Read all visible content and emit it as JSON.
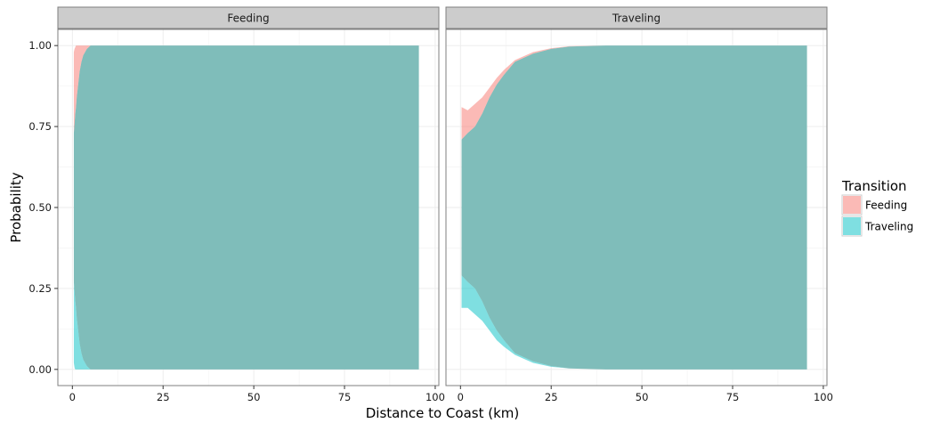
{
  "chart_data": {
    "type": "area",
    "xlabel": "Distance to Coast (km)",
    "ylabel": "Probability",
    "xlim": [
      -4,
      101
    ],
    "ylim": [
      -0.05,
      1.05
    ],
    "x_ticks": [
      0,
      25,
      50,
      75,
      100
    ],
    "x_tick_labels": [
      "0",
      "25",
      "50",
      "75",
      "100"
    ],
    "y_ticks": [
      0,
      0.25,
      0.5,
      0.75,
      1
    ],
    "y_tick_labels": [
      "0.00",
      "0.25",
      "0.50",
      "0.75",
      "1.00"
    ],
    "grid": true,
    "legend": {
      "title": "Transition",
      "placement": "right",
      "entries": [
        {
          "label": "Feeding",
          "color": "#F8766D"
        },
        {
          "label": "Traveling",
          "color": "#00BFC4"
        }
      ]
    },
    "colors": {
      "Feeding": "#F8766D",
      "Traveling": "#00BFC4",
      "overlap": "#7fbdba"
    },
    "panels": [
      {
        "title": "Feeding",
        "series": [
          {
            "name": "Feeding",
            "x": [
              0.4,
              0.6,
              0.8,
              1.0,
              1.2,
              1.5,
              2.0,
              2.5,
              3.0,
              4.0,
              5.0,
              10,
              50,
              95.5
            ],
            "lower": [
              0.73,
              0.76,
              0.79,
              0.81,
              0.84,
              0.87,
              0.92,
              0.95,
              0.97,
              0.99,
              1.0,
              1.0,
              1.0,
              1.0
            ],
            "upper": [
              0.98,
              0.99,
              0.995,
              1.0,
              1.0,
              1.0,
              1.0,
              1.0,
              1.0,
              1.0,
              1.0,
              1.0,
              1.0,
              1.0
            ]
          },
          {
            "name": "Traveling",
            "x": [
              0.4,
              0.6,
              0.8,
              1.0,
              1.2,
              1.5,
              2.0,
              2.5,
              3.0,
              4.0,
              5.0,
              10,
              50,
              95.5
            ],
            "lower": [
              0.02,
              0.005,
              0.0,
              0.0,
              0.0,
              0.0,
              0.0,
              0.0,
              0.0,
              0.0,
              0.0,
              0.0,
              0.0,
              0.0
            ],
            "upper": [
              0.27,
              0.24,
              0.21,
              0.19,
              0.16,
              0.13,
              0.08,
              0.05,
              0.03,
              0.01,
              0.0,
              0.0,
              0.0,
              0.0
            ]
          }
        ]
      },
      {
        "title": "Traveling",
        "series": [
          {
            "name": "Feeding",
            "x": [
              0.3,
              2,
              4,
              6,
              8,
              10,
              12,
              15,
              20,
              25,
              30,
              40,
              60,
              95.5
            ],
            "lower": [
              0.71,
              0.73,
              0.75,
              0.79,
              0.84,
              0.88,
              0.91,
              0.95,
              0.975,
              0.99,
              0.997,
              1.0,
              1.0,
              1.0
            ],
            "upper": [
              0.81,
              0.8,
              0.82,
              0.84,
              0.87,
              0.9,
              0.925,
              0.955,
              0.98,
              0.992,
              0.998,
              1.0,
              1.0,
              1.0
            ]
          },
          {
            "name": "Traveling",
            "x": [
              0.3,
              2,
              4,
              6,
              8,
              10,
              12,
              15,
              20,
              25,
              30,
              40,
              60,
              95.5
            ],
            "lower": [
              0.19,
              0.19,
              0.17,
              0.15,
              0.12,
              0.09,
              0.07,
              0.045,
              0.02,
              0.008,
              0.003,
              0.0,
              0.0,
              0.0
            ],
            "upper": [
              0.29,
              0.27,
              0.25,
              0.21,
              0.16,
              0.12,
              0.09,
              0.05,
              0.025,
              0.01,
              0.003,
              0.0,
              0.0,
              0.0
            ]
          }
        ]
      }
    ]
  }
}
